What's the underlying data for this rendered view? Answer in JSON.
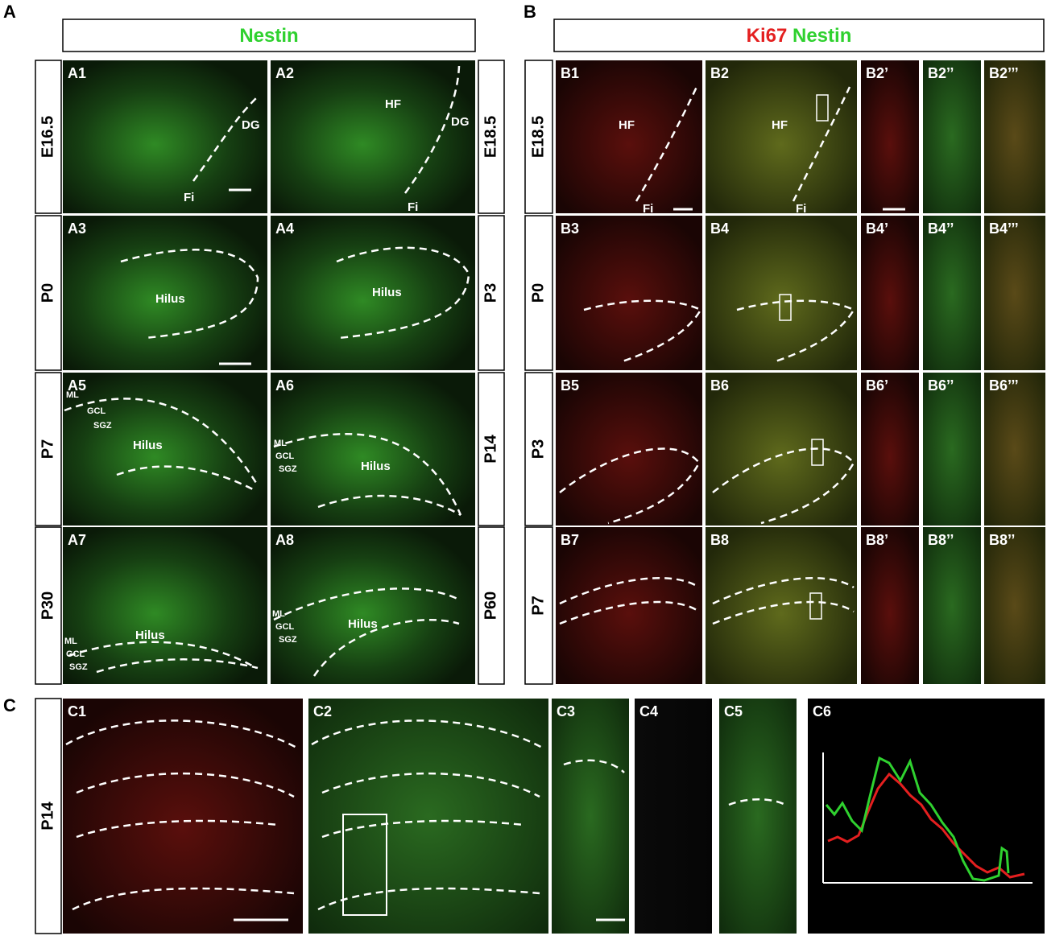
{
  "section_labels": [
    "A",
    "B",
    "C"
  ],
  "a_header": "Nestin",
  "b_header": [
    "Ki67",
    "Nestin"
  ],
  "a_rows": [
    {
      "left": "E16.5",
      "right": "E18.5",
      "panels": [
        "A1",
        "A2"
      ]
    },
    {
      "left": "P0",
      "right": "P3",
      "panels": [
        "A3",
        "A4"
      ]
    },
    {
      "left": "P7",
      "right": "P14",
      "panels": [
        "A5",
        "A6"
      ]
    },
    {
      "left": "P30",
      "right": "P60",
      "panels": [
        "A7",
        "A8"
      ]
    }
  ],
  "b_rows": [
    {
      "age": "E18.5",
      "panels": [
        "B1",
        "B2",
        "B2’",
        "B2’’",
        "B2’’’"
      ]
    },
    {
      "age": "P0",
      "panels": [
        "B3",
        "B4",
        "B4’",
        "B4’’",
        "B4’’’"
      ]
    },
    {
      "age": "P3",
      "panels": [
        "B5",
        "B6",
        "B6’",
        "B6’’",
        "B6’’’"
      ]
    },
    {
      "age": "P7",
      "panels": [
        "B7",
        "B8",
        "B8’",
        "B8’’",
        "B8’’"
      ]
    }
  ],
  "c_row": {
    "age": "P14",
    "panels": [
      "C1",
      "C2",
      "C3",
      "C4",
      "C5",
      "C6"
    ]
  },
  "annotations": [
    "DG",
    "Fi",
    "HF",
    "DG",
    "Fi",
    "Hilus",
    "Hilus",
    "ML",
    "GCL",
    "SGZ",
    "Hilus",
    "ML",
    "GCL",
    "SGZ",
    "Hilus",
    "ML",
    "GCL",
    "SGZ",
    "Hilus",
    "ML",
    "GCL",
    "SGZ",
    "Hilus",
    "HF",
    "Fi",
    "HF",
    "Fi"
  ]
}
